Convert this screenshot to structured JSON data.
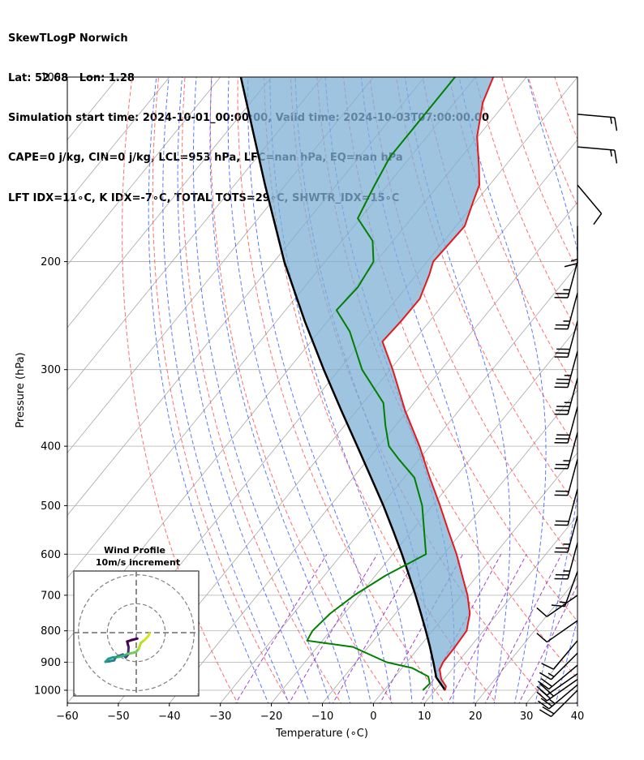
{
  "header": {
    "line1": "SkewTLogP Norwich",
    "line2": "Lat: 52.68   Lon: 1.28",
    "line3": "Simulation start time: 2024-10-01_00:00:00, Valid time: 2024-10-03T07:00:00.00",
    "line4": "CAPE=0 j/kg, CIN=0 j/kg, LCL=953 hPa, LFC=nan hPa, EQ=nan hPa",
    "line5": "LFT IDX=11∘C, K IDX=-7∘C, TOTAL TOTS=29∘C, SHWTR_IDX=15∘C"
  },
  "chart_data": {
    "type": "skewt",
    "xlabel": "Temperature (∘C)",
    "ylabel": "Pressure (hPa)",
    "xlim": [
      -60,
      40
    ],
    "ylim": [
      1050,
      100
    ],
    "x_ticks": [
      -60,
      -50,
      -40,
      -30,
      -20,
      -10,
      0,
      10,
      20,
      30,
      40
    ],
    "x_tick_labels": [
      "−60",
      "−50",
      "−40",
      "−30",
      "−20",
      "−10",
      "0",
      "10",
      "20",
      "30",
      "40"
    ],
    "y_ticks": [
      1000,
      900,
      800,
      700,
      600,
      500,
      400,
      300,
      200,
      100
    ],
    "y_tick_labels": [
      "1000",
      "900",
      "800",
      "700",
      "600",
      "500",
      "400",
      "300",
      "200",
      "100"
    ],
    "grid": true,
    "colors": {
      "temperature": "#e41a1c",
      "dewpoint": "#008000",
      "parcel": "#000000",
      "shading": "#7fb0d6",
      "dry_adiabats": "#ff5555",
      "moist_adiabats": "#4060ff",
      "mixing_ratio": "#9b30c8",
      "isotherms": "#999999"
    },
    "temperature_profile": [
      {
        "p": 1000,
        "t": 12.0
      },
      {
        "p": 985,
        "t": 11.5
      },
      {
        "p": 960,
        "t": 9.5
      },
      {
        "p": 925,
        "t": 7.6
      },
      {
        "p": 900,
        "t": 7.1
      },
      {
        "p": 850,
        "t": 7.0
      },
      {
        "p": 800,
        "t": 6.7
      },
      {
        "p": 750,
        "t": 4.6
      },
      {
        "p": 700,
        "t": 1.2
      },
      {
        "p": 650,
        "t": -3.0
      },
      {
        "p": 600,
        "t": -7.5
      },
      {
        "p": 550,
        "t": -12.8
      },
      {
        "p": 500,
        "t": -18.5
      },
      {
        "p": 450,
        "t": -25.0
      },
      {
        "p": 400,
        "t": -32.0
      },
      {
        "p": 350,
        "t": -40.5
      },
      {
        "p": 300,
        "t": -49.5
      },
      {
        "p": 270,
        "t": -56.0
      },
      {
        "p": 250,
        "t": -55.6
      },
      {
        "p": 230,
        "t": -55.5
      },
      {
        "p": 210,
        "t": -57.5
      },
      {
        "p": 200,
        "t": -58.8
      },
      {
        "p": 190,
        "t": -58.6
      },
      {
        "p": 175,
        "t": -58.3
      },
      {
        "p": 160,
        "t": -60.5
      },
      {
        "p": 150,
        "t": -62.0
      },
      {
        "p": 140,
        "t": -65.0
      },
      {
        "p": 125,
        "t": -70.2
      },
      {
        "p": 110,
        "t": -74.5
      },
      {
        "p": 100,
        "t": -76.5
      }
    ],
    "dewpoint_profile": [
      {
        "p": 1000,
        "t": 7.6
      },
      {
        "p": 975,
        "t": 7.9
      },
      {
        "p": 950,
        "t": 6.5
      },
      {
        "p": 920,
        "t": 2.0
      },
      {
        "p": 900,
        "t": -4.0
      },
      {
        "p": 850,
        "t": -13.0
      },
      {
        "p": 830,
        "t": -23.0
      },
      {
        "p": 800,
        "t": -23.5
      },
      {
        "p": 750,
        "t": -22.8
      },
      {
        "p": 700,
        "t": -21.0
      },
      {
        "p": 650,
        "t": -18.0
      },
      {
        "p": 600,
        "t": -13.5
      },
      {
        "p": 500,
        "t": -22.0
      },
      {
        "p": 450,
        "t": -28.0
      },
      {
        "p": 420,
        "t": -34.0
      },
      {
        "p": 400,
        "t": -38.0
      },
      {
        "p": 370,
        "t": -42.0
      },
      {
        "p": 340,
        "t": -46.0
      },
      {
        "p": 300,
        "t": -55.5
      },
      {
        "p": 260,
        "t": -64.0
      },
      {
        "p": 240,
        "t": -70.0
      },
      {
        "p": 220,
        "t": -69.5
      },
      {
        "p": 200,
        "t": -70.5
      },
      {
        "p": 185,
        "t": -74.0
      },
      {
        "p": 170,
        "t": -80.5
      },
      {
        "p": 150,
        "t": -82.5
      },
      {
        "p": 135,
        "t": -84.0
      },
      {
        "p": 120,
        "t": -84.0
      },
      {
        "p": 100,
        "t": -84.0
      }
    ],
    "parcel_profile": [
      {
        "p": 1000,
        "t": 12.0
      },
      {
        "p": 953,
        "t": 8.2
      },
      {
        "p": 900,
        "t": 5.2
      },
      {
        "p": 850,
        "t": 2.1
      },
      {
        "p": 800,
        "t": -1.3
      },
      {
        "p": 750,
        "t": -5.0
      },
      {
        "p": 700,
        "t": -9.0
      },
      {
        "p": 650,
        "t": -13.4
      },
      {
        "p": 600,
        "t": -18.2
      },
      {
        "p": 550,
        "t": -23.6
      },
      {
        "p": 500,
        "t": -29.6
      },
      {
        "p": 450,
        "t": -36.5
      },
      {
        "p": 400,
        "t": -44.2
      },
      {
        "p": 350,
        "t": -53.0
      },
      {
        "p": 300,
        "t": -63.0
      },
      {
        "p": 250,
        "t": -74.5
      },
      {
        "p": 200,
        "t": -88.0
      },
      {
        "p": 150,
        "t": -104.0
      },
      {
        "p": 100,
        "t": -126.0
      }
    ],
    "wind_barbs": [
      {
        "p": 1000,
        "speed_kt": 20,
        "dir": 225
      },
      {
        "p": 980,
        "speed_kt": 25,
        "dir": 230
      },
      {
        "p": 960,
        "speed_kt": 25,
        "dir": 235
      },
      {
        "p": 940,
        "speed_kt": 20,
        "dir": 235
      },
      {
        "p": 910,
        "speed_kt": 20,
        "dir": 230
      },
      {
        "p": 870,
        "speed_kt": 15,
        "dir": 225
      },
      {
        "p": 830,
        "speed_kt": 10,
        "dir": 220
      },
      {
        "p": 770,
        "speed_kt": 10,
        "dir": 235
      },
      {
        "p": 700,
        "speed_kt": 10,
        "dir": 235
      },
      {
        "p": 640,
        "speed_kt": 15,
        "dir": 200
      },
      {
        "p": 575,
        "speed_kt": 25,
        "dir": 195
      },
      {
        "p": 520,
        "speed_kt": 25,
        "dir": 195
      },
      {
        "p": 470,
        "speed_kt": 20,
        "dir": 195
      },
      {
        "p": 420,
        "speed_kt": 20,
        "dir": 195
      },
      {
        "p": 380,
        "speed_kt": 25,
        "dir": 195
      },
      {
        "p": 345,
        "speed_kt": 30,
        "dir": 195
      },
      {
        "p": 310,
        "speed_kt": 35,
        "dir": 195
      },
      {
        "p": 280,
        "speed_kt": 35,
        "dir": 195
      },
      {
        "p": 250,
        "speed_kt": 30,
        "dir": 195
      },
      {
        "p": 225,
        "speed_kt": 25,
        "dir": 195
      },
      {
        "p": 200,
        "speed_kt": 25,
        "dir": 195
      },
      {
        "p": 175,
        "speed_kt": 15,
        "dir": 180
      },
      {
        "p": 150,
        "speed_kt": 10,
        "dir": 140
      },
      {
        "p": 130,
        "speed_kt": 15,
        "dir": 95
      },
      {
        "p": 115,
        "speed_kt": 15,
        "dir": 95
      }
    ],
    "hodograph": {
      "title_line1": "Wind Profile",
      "title_line2": "10m/s increment",
      "rings_ms": [
        10,
        20,
        30
      ],
      "points": [
        {
          "u": -3,
          "v": -1.5
        },
        {
          "u": -5,
          "v": -2
        },
        {
          "u": -6.5,
          "v": -2.5
        },
        {
          "u": -6,
          "v": -4.5
        },
        {
          "u": -6.2,
          "v": -7
        },
        {
          "u": -7,
          "v": -8
        },
        {
          "u": -8,
          "v": -7
        },
        {
          "u": -9.5,
          "v": -7.5
        },
        {
          "u": -10.5,
          "v": -8
        },
        {
          "u": -11,
          "v": -9
        },
        {
          "u": -12.5,
          "v": -9.3
        },
        {
          "u": -14,
          "v": -9.5
        },
        {
          "u": -13,
          "v": -8.5
        },
        {
          "u": -11.5,
          "v": -8
        },
        {
          "u": -9.5,
          "v": -7.8
        },
        {
          "u": -8,
          "v": -7.5
        },
        {
          "u": -6,
          "v": -6.7
        },
        {
          "u": -3.5,
          "v": -6.2
        },
        {
          "u": -2.5,
          "v": -5
        },
        {
          "u": -1.8,
          "v": -3
        },
        {
          "u": -0.5,
          "v": -2
        },
        {
          "u": 0.8,
          "v": -0.6
        },
        {
          "u": 1.2,
          "v": 0.3
        }
      ]
    }
  }
}
